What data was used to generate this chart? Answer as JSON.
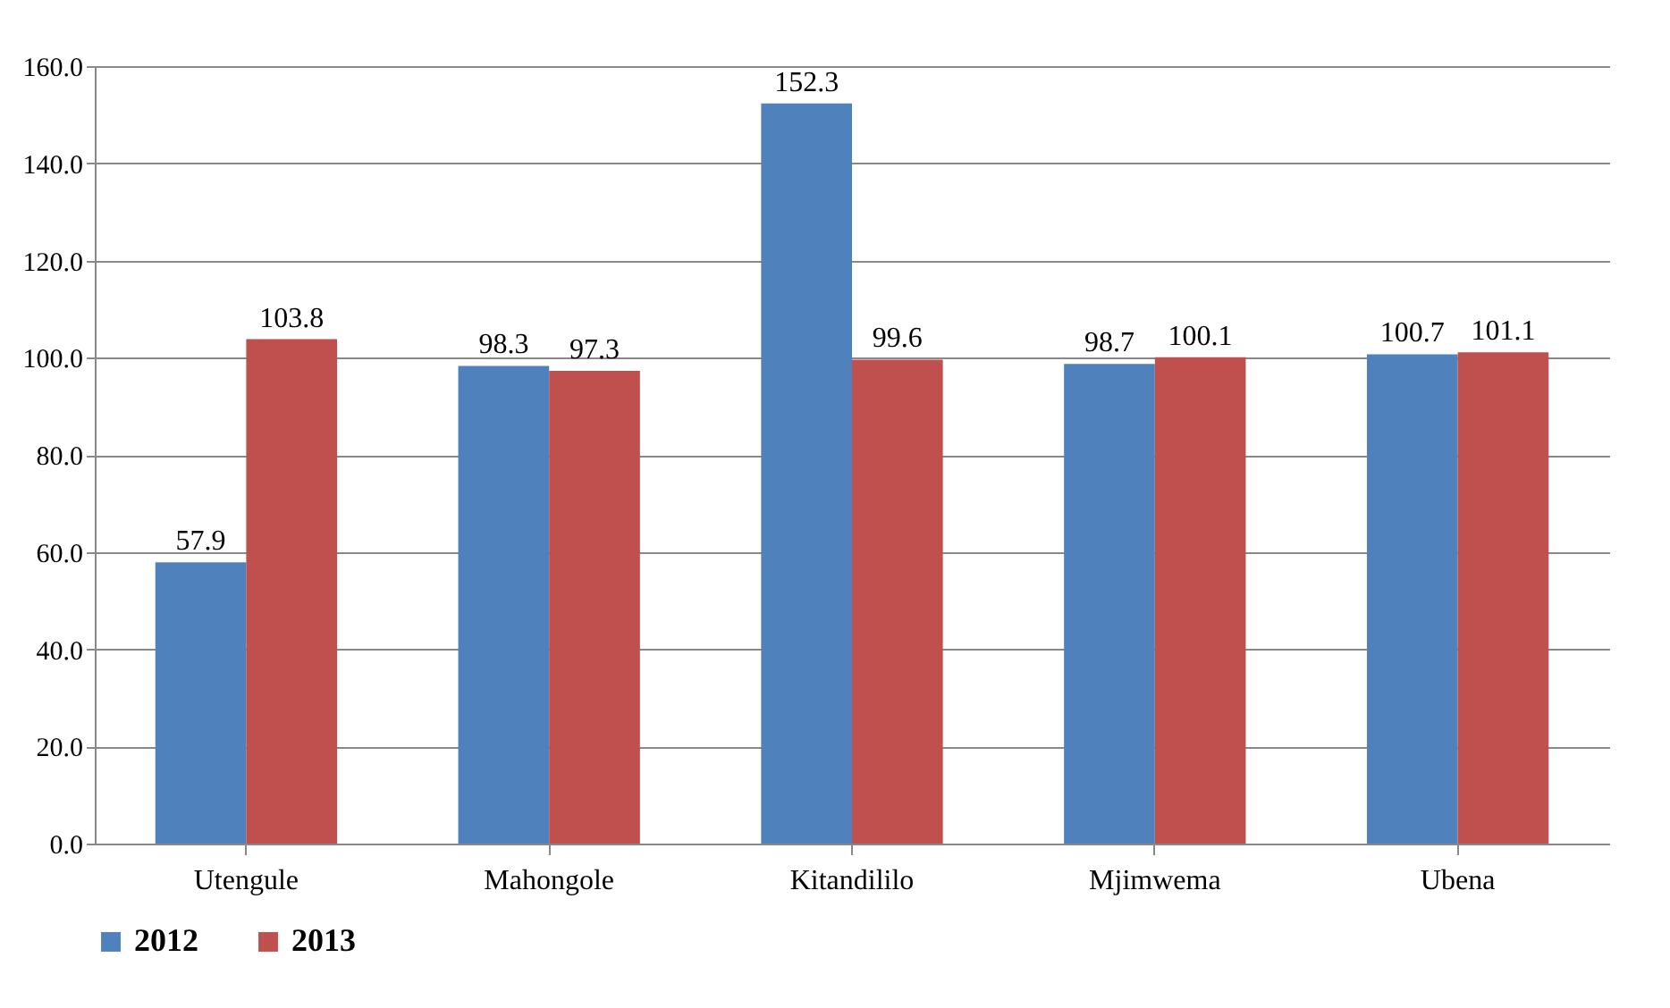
{
  "chart_data": {
    "type": "bar",
    "categories": [
      "Utengule",
      "Mahongole",
      "Kitandililo",
      "Mjimwema",
      "Ubena"
    ],
    "series": [
      {
        "name": "2012",
        "color": "#4f81bd",
        "values": [
          57.9,
          98.3,
          152.3,
          98.7,
          100.7
        ]
      },
      {
        "name": "2013",
        "color": "#c0504d",
        "values": [
          103.8,
          97.3,
          99.6,
          100.1,
          101.1
        ]
      }
    ],
    "ylim": [
      0,
      160
    ],
    "yticks": [
      {
        "value": 0,
        "label": "0.0"
      },
      {
        "value": 20,
        "label": "20.0"
      },
      {
        "value": 40,
        "label": "40.0"
      },
      {
        "value": 60,
        "label": "60.0"
      },
      {
        "value": 80,
        "label": "80.0"
      },
      {
        "value": 100,
        "label": "100.0"
      },
      {
        "value": 120,
        "label": "120.0"
      },
      {
        "value": 140,
        "label": "140.0"
      },
      {
        "value": 160,
        "label": "160.0"
      }
    ],
    "grid": "y",
    "legend": "bottom",
    "data_labels": true
  }
}
